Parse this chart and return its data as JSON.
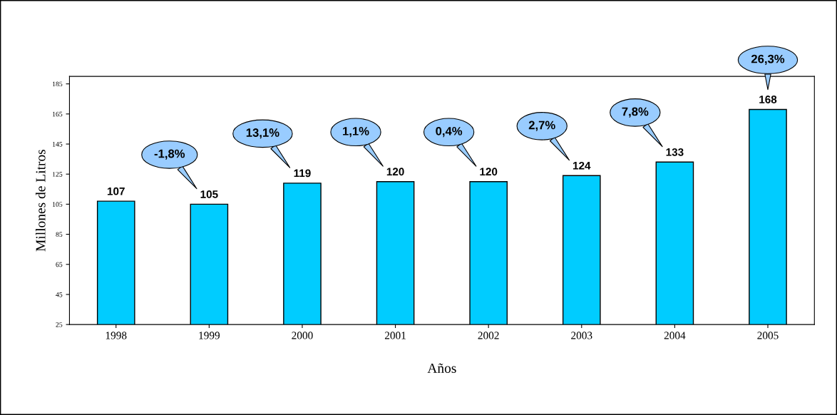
{
  "chart_data": {
    "type": "bar",
    "xlabel": "Años",
    "ylabel": "Millones de Litros",
    "categories": [
      "1998",
      "1999",
      "2000",
      "2001",
      "2002",
      "2003",
      "2004",
      "2005"
    ],
    "values": [
      107,
      105,
      119,
      120,
      120,
      124,
      133,
      168
    ],
    "color": "#00ccff",
    "data_labels": true,
    "ylim": [
      25,
      190
    ],
    "yticks": [
      25,
      45,
      65,
      85,
      105,
      125,
      145,
      165,
      185
    ],
    "grid": false,
    "annotations": [
      "-1,8%",
      "13,1%",
      "1,1%",
      "0,4%",
      "2,7%",
      "7,8%",
      "26,3%"
    ]
  }
}
